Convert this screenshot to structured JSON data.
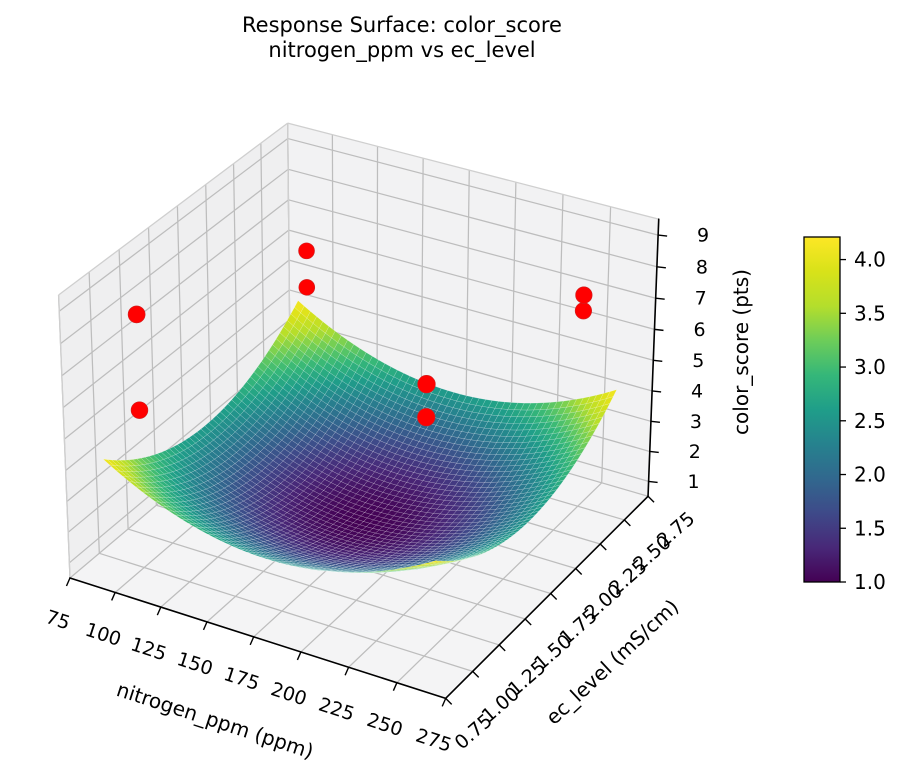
{
  "chart_data": {
    "type": "surface3d",
    "title_line1": "Response Surface: color_score",
    "title_line2": "nitrogen_ppm vs ec_level",
    "x_axis": {
      "label": "nitrogen_ppm (ppm)",
      "lim": [
        75,
        275
      ],
      "ticks": [
        75,
        100,
        125,
        150,
        175,
        200,
        225,
        250,
        275
      ],
      "tick_labels": [
        "75",
        "100",
        "125",
        "150",
        "175",
        "200",
        "225",
        "250",
        "275"
      ]
    },
    "y_axis": {
      "label": "ec_level (mS/cm)",
      "lim": [
        0.75,
        2.75
      ],
      "ticks": [
        0.75,
        1.0,
        1.25,
        1.5,
        1.75,
        2.0,
        2.25,
        2.5,
        2.75
      ],
      "tick_labels": [
        "0.75",
        "1.00",
        "1.25",
        "1.50",
        "1.75",
        "2.00",
        "2.25",
        "2.50",
        "2.75"
      ]
    },
    "z_axis": {
      "label": "color_score (pts)",
      "lim": [
        0.5,
        9.5
      ],
      "ticks": [
        1,
        2,
        3,
        4,
        5,
        6,
        7,
        8,
        9
      ],
      "tick_labels": [
        "1",
        "2",
        "3",
        "4",
        "5",
        "6",
        "7",
        "8",
        "9"
      ]
    },
    "surface": {
      "description": "fitted quadratic bowl, minimum at center rising toward corners",
      "x_range": [
        87.5,
        262.5
      ],
      "y_range": [
        0.875,
        2.625
      ],
      "center_x": 175,
      "center_y": 1.75,
      "z_min": 1.0,
      "z_max": 4.2,
      "coef_x": 1.6,
      "coef_y": 1.6
    },
    "scatter": {
      "color": "#ff0000",
      "edge_color": "#cc2222",
      "points": [
        {
          "x": 100,
          "y": 1.0,
          "z": 8.6
        },
        {
          "x": 100,
          "y": 1.0,
          "z": 5.6
        },
        {
          "x": 100,
          "y": 2.5,
          "z": 6.4
        },
        {
          "x": 100,
          "y": 2.5,
          "z": 5.2
        },
        {
          "x": 250,
          "y": 1.0,
          "z": 9.0
        },
        {
          "x": 250,
          "y": 1.0,
          "z": 8.0
        },
        {
          "x": 250,
          "y": 2.5,
          "z": 7.4
        },
        {
          "x": 250,
          "y": 2.5,
          "z": 6.9
        }
      ]
    },
    "colormap": {
      "name": "viridis",
      "stops": [
        "#440154",
        "#482878",
        "#3e4a89",
        "#31688e",
        "#26828e",
        "#1f9e89",
        "#35b779",
        "#6dcd59",
        "#b4de2c",
        "#d8e219",
        "#fde725"
      ]
    },
    "colorbar": {
      "vmin": 1.0,
      "vmax": 4.21,
      "tick_values": [
        1.0,
        1.5,
        2.0,
        2.5,
        3.0,
        3.5,
        4.0
      ],
      "tick_labels": [
        "1.0",
        "1.5",
        "2.0",
        "2.5",
        "3.0",
        "3.5",
        "4.0"
      ]
    },
    "colors": {
      "pane_left": "#efeff0",
      "pane_right": "#f2f2f3",
      "pane_floor": "#f4f4f5",
      "grid": "#bdbdbd",
      "pane_edge": "#cfcfcf",
      "spine": "#000000",
      "text": "#000000",
      "background": "#ffffff"
    }
  }
}
